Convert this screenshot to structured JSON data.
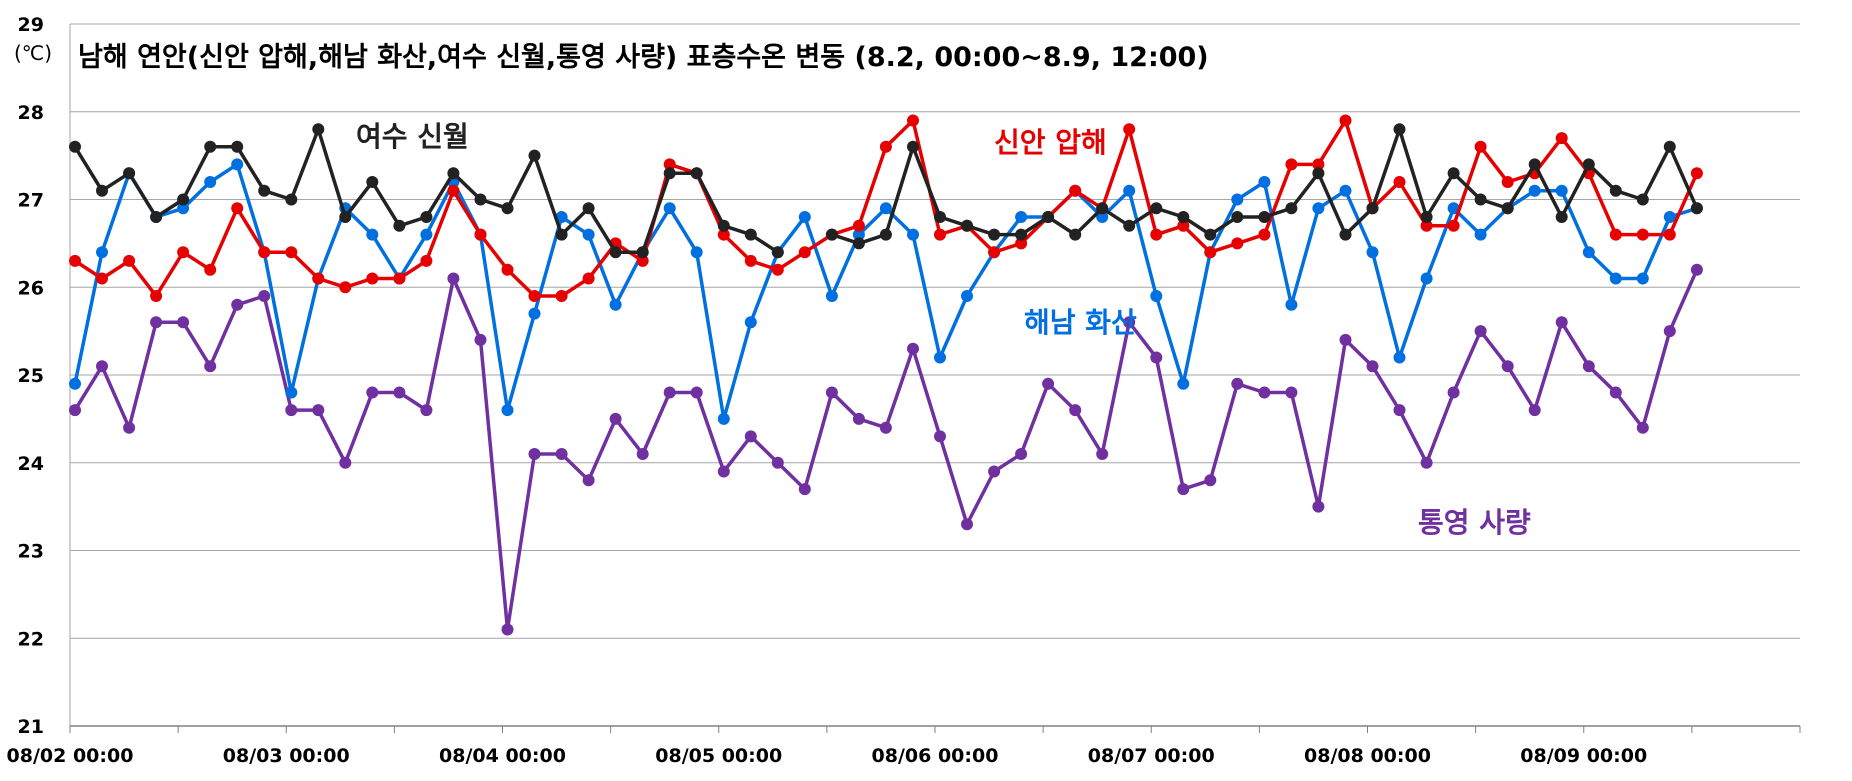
{
  "chart_data": {
    "type": "line",
    "title": "남해 연안(신안 압해,해남 화산,여수 신월,통영 사량) 표층수온 변동 (8.2, 00:00~8.9, 12:00)",
    "y_unit_label": "(℃)",
    "ylim": [
      21,
      29
    ],
    "y_ticks": [
      "21",
      "22",
      "23",
      "24",
      "25",
      "26",
      "27",
      "28",
      "29"
    ],
    "x_tick_labels": [
      "08/02 00:00",
      "08/03 00:00",
      "08/04 00:00",
      "08/05 00:00",
      "08/06 00:00",
      "08/07 00:00",
      "08/08 00:00",
      "08/09 00:00"
    ],
    "x": [
      "08/02 00:00",
      "08/02 03:00",
      "08/02 06:00",
      "08/02 09:00",
      "08/02 12:00",
      "08/02 15:00",
      "08/02 18:00",
      "08/02 21:00",
      "08/03 00:00",
      "08/03 03:00",
      "08/03 06:00",
      "08/03 09:00",
      "08/03 12:00",
      "08/03 15:00",
      "08/03 18:00",
      "08/03 21:00",
      "08/04 00:00",
      "08/04 03:00",
      "08/04 06:00",
      "08/04 09:00",
      "08/04 12:00",
      "08/04 15:00",
      "08/04 18:00",
      "08/04 21:00",
      "08/05 00:00",
      "08/05 03:00",
      "08/05 06:00",
      "08/05 09:00",
      "08/05 12:00",
      "08/05 15:00",
      "08/05 18:00",
      "08/05 21:00",
      "08/06 00:00",
      "08/06 03:00",
      "08/06 06:00",
      "08/06 09:00",
      "08/06 12:00",
      "08/06 15:00",
      "08/06 18:00",
      "08/06 21:00",
      "08/07 00:00",
      "08/07 03:00",
      "08/07 06:00",
      "08/07 09:00",
      "08/07 12:00",
      "08/07 15:00",
      "08/07 18:00",
      "08/07 21:00",
      "08/08 00:00",
      "08/08 03:00",
      "08/08 06:00",
      "08/08 09:00",
      "08/08 12:00",
      "08/08 15:00",
      "08/08 18:00",
      "08/08 21:00",
      "08/09 00:00",
      "08/09 03:00",
      "08/09 06:00",
      "08/09 09:00",
      "08/09 12:00"
    ],
    "grid": true,
    "series": [
      {
        "name": "통영 사량",
        "color": "#7030A0",
        "values": [
          24.6,
          25.1,
          24.4,
          25.6,
          25.6,
          25.1,
          25.8,
          25.9,
          24.6,
          24.6,
          24.0,
          24.8,
          24.8,
          24.6,
          26.1,
          25.4,
          22.1,
          24.1,
          24.1,
          23.8,
          24.5,
          24.1,
          24.8,
          24.8,
          23.9,
          24.3,
          24.0,
          23.7,
          24.8,
          24.5,
          24.4,
          25.3,
          24.3,
          23.3,
          23.9,
          24.1,
          24.9,
          24.6,
          24.1,
          25.6,
          25.2,
          23.7,
          23.8,
          24.9,
          24.8,
          24.8,
          23.5,
          25.4,
          25.1,
          24.6,
          24.0,
          24.8,
          25.5,
          25.1,
          24.6,
          25.6,
          25.1,
          24.8,
          24.4,
          25.5,
          26.2
        ]
      },
      {
        "name": "해남 화산",
        "color": "#0070E0",
        "values": [
          24.9,
          26.4,
          27.3,
          26.8,
          26.9,
          27.2,
          27.4,
          26.4,
          24.8,
          26.1,
          26.9,
          26.6,
          26.1,
          26.6,
          27.2,
          26.6,
          24.6,
          25.7,
          26.8,
          26.6,
          25.8,
          26.4,
          26.9,
          26.4,
          24.5,
          25.6,
          26.4,
          26.8,
          25.9,
          26.6,
          26.9,
          26.6,
          25.2,
          25.9,
          26.4,
          26.8,
          26.8,
          27.1,
          26.8,
          27.1,
          25.9,
          24.9,
          26.4,
          27.0,
          27.2,
          25.8,
          26.9,
          27.1,
          26.4,
          25.2,
          26.1,
          26.9,
          26.6,
          26.9,
          27.1,
          27.1,
          26.4,
          26.1,
          26.1,
          26.8,
          26.9
        ]
      },
      {
        "name": "신안 압해",
        "color": "#E60000",
        "values": [
          26.3,
          26.1,
          26.3,
          25.9,
          26.4,
          26.2,
          26.9,
          26.4,
          26.4,
          26.1,
          26.0,
          26.1,
          26.1,
          26.3,
          27.1,
          26.6,
          26.2,
          25.9,
          25.9,
          26.1,
          26.5,
          26.3,
          27.4,
          27.3,
          26.6,
          26.3,
          26.2,
          26.4,
          26.6,
          26.7,
          27.6,
          27.9,
          26.6,
          26.7,
          26.4,
          26.5,
          26.8,
          27.1,
          26.9,
          27.8,
          26.6,
          26.7,
          26.4,
          26.5,
          26.6,
          27.4,
          27.4,
          27.9,
          26.9,
          27.2,
          26.7,
          26.7,
          27.6,
          27.2,
          27.3,
          27.7,
          27.3,
          26.6,
          26.6,
          26.6,
          27.3
        ]
      },
      {
        "name": "여수 신월",
        "color": "#222222",
        "values": [
          27.6,
          27.1,
          27.3,
          26.8,
          27.0,
          27.6,
          27.6,
          27.1,
          27.0,
          27.8,
          26.8,
          27.2,
          26.7,
          26.8,
          27.3,
          27.0,
          26.9,
          27.5,
          26.6,
          26.9,
          26.4,
          26.4,
          27.3,
          27.3,
          26.7,
          26.6,
          26.4,
          null,
          26.6,
          26.5,
          26.6,
          27.6,
          26.8,
          26.7,
          26.6,
          26.6,
          26.8,
          26.6,
          26.9,
          26.7,
          26.9,
          26.8,
          26.6,
          26.8,
          26.8,
          26.9,
          27.3,
          26.6,
          26.9,
          27.8,
          26.8,
          27.3,
          27.0,
          26.9,
          27.4,
          26.8,
          27.4,
          27.1,
          27.0,
          27.6,
          26.9
        ]
      }
    ]
  }
}
